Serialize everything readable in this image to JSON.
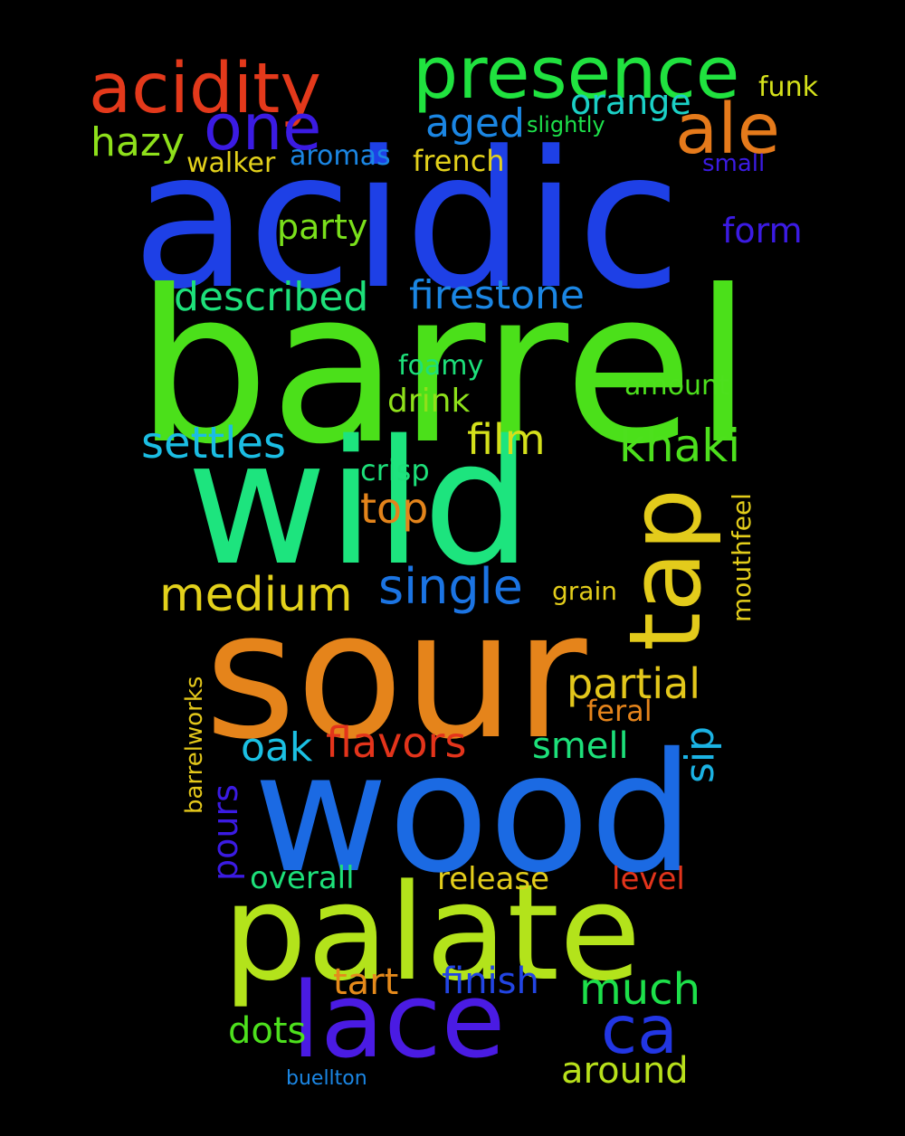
{
  "background_color": "#000000",
  "words": [
    {
      "text": "acidic",
      "color": "#1e40e6"
    },
    {
      "text": "barrel",
      "color": "#4be01a"
    },
    {
      "text": "wild",
      "color": "#1de47e"
    },
    {
      "text": "sour",
      "color": "#e5841b"
    },
    {
      "text": "wood",
      "color": "#1b6ae3"
    },
    {
      "text": "palate",
      "color": "#b3e31b"
    },
    {
      "text": "lace",
      "color": "#4a1be3"
    },
    {
      "text": "tap",
      "color": "#e3cb1b"
    },
    {
      "text": "presence",
      "color": "#20e23f"
    },
    {
      "text": "acidity",
      "color": "#e3391b"
    },
    {
      "text": "ale",
      "color": "#e57a1b"
    },
    {
      "text": "one",
      "color": "#3b1be3"
    },
    {
      "text": "ca",
      "color": "#2236e3"
    },
    {
      "text": "single",
      "color": "#1b74e3"
    },
    {
      "text": "medium",
      "color": "#e3d11b"
    },
    {
      "text": "described",
      "color": "#1de07a"
    },
    {
      "text": "firestone",
      "color": "#1b86e3"
    },
    {
      "text": "settles",
      "color": "#1bbde3"
    },
    {
      "text": "khaki",
      "color": "#4de01d"
    },
    {
      "text": "partial",
      "color": "#e3c71b"
    },
    {
      "text": "flavors",
      "color": "#e3341b"
    },
    {
      "text": "film",
      "color": "#d4e01b"
    },
    {
      "text": "top",
      "color": "#e3841b"
    },
    {
      "text": "hazy",
      "color": "#8ee01b"
    },
    {
      "text": "aged",
      "color": "#1b86e3"
    },
    {
      "text": "orange",
      "color": "#1bd0c6"
    },
    {
      "text": "party",
      "color": "#7ae01b"
    },
    {
      "text": "form",
      "color": "#3b1be3"
    },
    {
      "text": "oak",
      "color": "#1bc0e3"
    },
    {
      "text": "smell",
      "color": "#1de07a"
    },
    {
      "text": "much",
      "color": "#1de04a"
    },
    {
      "text": "finish",
      "color": "#2245e3"
    },
    {
      "text": "tart",
      "color": "#e58a1b"
    },
    {
      "text": "dots",
      "color": "#4de01d"
    },
    {
      "text": "around",
      "color": "#b8e01b"
    },
    {
      "text": "sip",
      "color": "#1bb2e3"
    },
    {
      "text": "pours",
      "color": "#3b1be3"
    },
    {
      "text": "overall",
      "color": "#1de07a"
    },
    {
      "text": "release",
      "color": "#e3cd1b"
    },
    {
      "text": "level",
      "color": "#e3341b"
    },
    {
      "text": "drink",
      "color": "#8ee01b"
    },
    {
      "text": "foamy",
      "color": "#1de07a"
    },
    {
      "text": "crisp",
      "color": "#1de07a"
    },
    {
      "text": "amount",
      "color": "#4de01d"
    },
    {
      "text": "french",
      "color": "#e3d11b"
    },
    {
      "text": "walker",
      "color": "#e3d11b"
    },
    {
      "text": "aromas",
      "color": "#1b86e3"
    },
    {
      "text": "funk",
      "color": "#d4e01b"
    },
    {
      "text": "slightly",
      "color": "#1de04a"
    },
    {
      "text": "small",
      "color": "#3b1be3"
    },
    {
      "text": "grain",
      "color": "#e3cd1b"
    },
    {
      "text": "feral",
      "color": "#e5841b"
    },
    {
      "text": "mouthfeel",
      "color": "#e3cd1b"
    },
    {
      "text": "barrelworks",
      "color": "#e3c71b"
    },
    {
      "text": "buellton",
      "color": "#1b86e3"
    }
  ]
}
